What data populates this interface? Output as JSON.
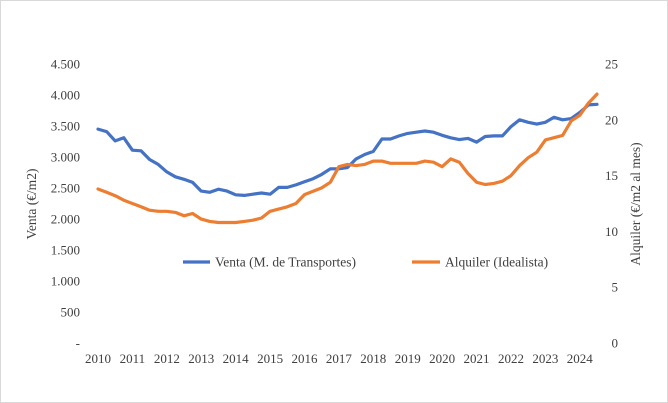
{
  "chart_data": {
    "type": "line",
    "title": "",
    "xlabel": "",
    "ylabel_left": "Venta (€/m2)",
    "ylabel_right": "Alquiler (€/m2 al mes)",
    "ylim_left": [
      0,
      4500
    ],
    "ylim_right": [
      0,
      25
    ],
    "grid": false,
    "legend_position": "center",
    "y_ticks_left": [
      "-",
      "500",
      "1.000",
      "1.500",
      "2.000",
      "2.500",
      "3.000",
      "3.500",
      "4.000",
      "4.500"
    ],
    "y_ticks_right": [
      "0",
      "5",
      "10",
      "15",
      "20",
      "25"
    ],
    "x_ticks": [
      "2010",
      "2011",
      "2012",
      "2013",
      "2014",
      "2015",
      "2016",
      "2017",
      "2018",
      "2019",
      "2020",
      "2021",
      "2022",
      "2023",
      "2024"
    ],
    "series": [
      {
        "name": "Venta (M. de Transportes)",
        "axis": "left",
        "color": "#4472C4",
        "x": [
          2010,
          2010.25,
          2010.5,
          2010.75,
          2011,
          2011.25,
          2011.5,
          2011.75,
          2012,
          2012.25,
          2012.5,
          2012.75,
          2013,
          2013.25,
          2013.5,
          2013.75,
          2014,
          2014.25,
          2014.5,
          2014.75,
          2015,
          2015.25,
          2015.5,
          2015.75,
          2016,
          2016.25,
          2016.5,
          2016.75,
          2017,
          2017.25,
          2017.5,
          2017.75,
          2018,
          2018.25,
          2018.5,
          2018.75,
          2019,
          2019.25,
          2019.5,
          2019.75,
          2020,
          2020.25,
          2020.5,
          2020.75,
          2021,
          2021.25,
          2021.5,
          2021.75,
          2022,
          2022.25,
          2022.5,
          2022.75,
          2023,
          2023.25,
          2023.5,
          2023.75,
          2024,
          2024.25,
          2024.5
        ],
        "values": [
          3450,
          3410,
          3260,
          3310,
          3110,
          3100,
          2960,
          2880,
          2760,
          2680,
          2640,
          2590,
          2450,
          2430,
          2480,
          2450,
          2390,
          2380,
          2400,
          2420,
          2400,
          2510,
          2510,
          2550,
          2600,
          2650,
          2720,
          2810,
          2810,
          2830,
          2970,
          3040,
          3090,
          3290,
          3290,
          3340,
          3380,
          3400,
          3420,
          3400,
          3350,
          3310,
          3280,
          3300,
          3240,
          3330,
          3340,
          3340,
          3490,
          3600,
          3560,
          3530,
          3560,
          3640,
          3600,
          3620,
          3720,
          3840,
          3850
        ]
      },
      {
        "name": "Alquiler (Idealista)",
        "axis": "right",
        "color": "#ED7D31",
        "x": [
          2010,
          2010.25,
          2010.5,
          2010.75,
          2011,
          2011.25,
          2011.5,
          2011.75,
          2012,
          2012.25,
          2012.5,
          2012.75,
          2013,
          2013.25,
          2013.5,
          2013.75,
          2014,
          2014.25,
          2014.5,
          2014.75,
          2015,
          2015.25,
          2015.5,
          2015.75,
          2016,
          2016.25,
          2016.5,
          2016.75,
          2017,
          2017.25,
          2017.5,
          2017.75,
          2018,
          2018.25,
          2018.5,
          2018.75,
          2019,
          2019.25,
          2019.5,
          2019.75,
          2020,
          2020.25,
          2020.5,
          2020.75,
          2021,
          2021.25,
          2021.5,
          2021.75,
          2022,
          2022.25,
          2022.5,
          2022.75,
          2023,
          2023.25,
          2023.5,
          2023.75,
          2024,
          2024.25,
          2024.5
        ],
        "values": [
          13.8,
          13.5,
          13.2,
          12.8,
          12.5,
          12.2,
          11.9,
          11.8,
          11.8,
          11.7,
          11.4,
          11.6,
          11.1,
          10.9,
          10.8,
          10.8,
          10.8,
          10.9,
          11.0,
          11.2,
          11.8,
          12.0,
          12.2,
          12.5,
          13.3,
          13.6,
          13.9,
          14.4,
          15.8,
          16.0,
          15.9,
          16.0,
          16.3,
          16.3,
          16.1,
          16.1,
          16.1,
          16.1,
          16.3,
          16.2,
          15.8,
          16.5,
          16.2,
          15.2,
          14.4,
          14.2,
          14.3,
          14.5,
          15.0,
          15.9,
          16.6,
          17.1,
          18.2,
          18.4,
          18.6,
          19.9,
          20.4,
          21.5,
          22.3
        ]
      }
    ]
  }
}
